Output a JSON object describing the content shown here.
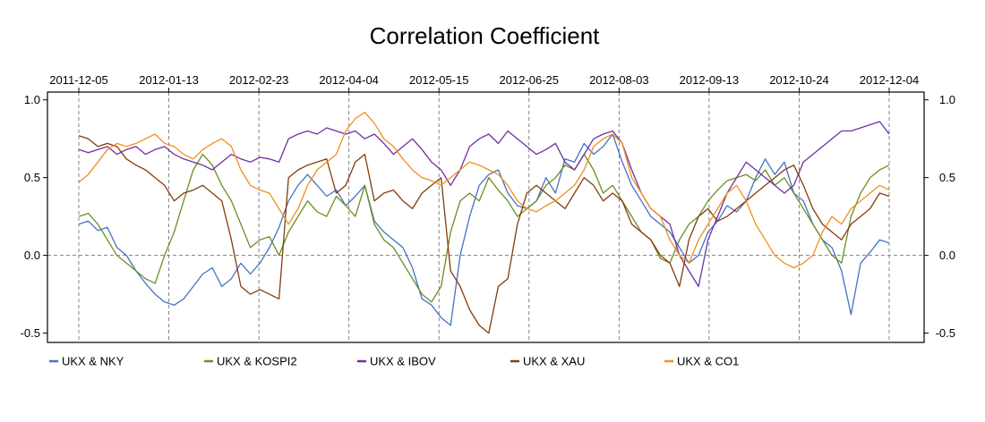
{
  "chart_data": {
    "type": "line",
    "title": "Correlation Coefficient",
    "xlabel": "",
    "ylabel": "",
    "x_ticks": [
      "2011-12-05",
      "2012-01-13",
      "2012-02-23",
      "2012-04-04",
      "2012-05-15",
      "2012-06-25",
      "2012-08-03",
      "2012-09-13",
      "2012-10-24",
      "2012-12-04"
    ],
    "y_ticks": [
      "1.0",
      "0.5",
      "0.0",
      "-0.5"
    ],
    "y_tick_values": [
      1.0,
      0.5,
      0.0,
      -0.5
    ],
    "ylim": [
      -0.56,
      1.05
    ],
    "grid": "dashed vertical lines at date ticks, dashed horizontal line at 0",
    "legend_position": "bottom",
    "series": [
      {
        "name": "UKX  &  NKY",
        "color": "#4472C4",
        "values": [
          0.2,
          0.22,
          0.16,
          0.18,
          0.05,
          0.0,
          -0.1,
          -0.18,
          -0.25,
          -0.3,
          -0.32,
          -0.28,
          -0.2,
          -0.12,
          -0.08,
          -0.2,
          -0.15,
          -0.05,
          -0.12,
          -0.05,
          0.05,
          0.18,
          0.35,
          0.45,
          0.52,
          0.45,
          0.38,
          0.42,
          0.32,
          0.38,
          0.45,
          0.22,
          0.15,
          0.1,
          0.05,
          -0.08,
          -0.28,
          -0.32,
          -0.4,
          -0.45,
          0.0,
          0.25,
          0.45,
          0.52,
          0.55,
          0.4,
          0.32,
          0.3,
          0.35,
          0.5,
          0.4,
          0.62,
          0.6,
          0.72,
          0.65,
          0.7,
          0.78,
          0.6,
          0.45,
          0.35,
          0.25,
          0.2,
          0.15,
          0.05,
          -0.05,
          0.0,
          0.15,
          0.22,
          0.32,
          0.28,
          0.35,
          0.5,
          0.62,
          0.52,
          0.6,
          0.4,
          0.35,
          0.2,
          0.1,
          0.05,
          -0.1,
          -0.38,
          -0.05,
          0.02,
          0.1,
          0.08
        ]
      },
      {
        "name": "UKX  &  KOSPI2",
        "color": "#6B8E23",
        "values": [
          0.25,
          0.27,
          0.2,
          0.1,
          0.0,
          -0.05,
          -0.1,
          -0.15,
          -0.18,
          0.0,
          0.15,
          0.35,
          0.55,
          0.65,
          0.58,
          0.45,
          0.35,
          0.2,
          0.05,
          0.1,
          0.12,
          0.0,
          0.15,
          0.25,
          0.35,
          0.28,
          0.25,
          0.38,
          0.32,
          0.25,
          0.45,
          0.2,
          0.1,
          0.05,
          -0.05,
          -0.15,
          -0.25,
          -0.3,
          -0.2,
          0.15,
          0.35,
          0.4,
          0.35,
          0.5,
          0.42,
          0.35,
          0.25,
          0.3,
          0.35,
          0.45,
          0.5,
          0.58,
          0.55,
          0.65,
          0.55,
          0.4,
          0.45,
          0.35,
          0.25,
          0.15,
          0.1,
          -0.02,
          -0.05,
          0.1,
          0.2,
          0.25,
          0.35,
          0.42,
          0.48,
          0.5,
          0.52,
          0.48,
          0.55,
          0.45,
          0.5,
          0.4,
          0.3,
          0.2,
          0.1,
          0.0,
          -0.05,
          0.25,
          0.4,
          0.5,
          0.55,
          0.58
        ]
      },
      {
        "name": "UKX  &  IBOV",
        "color": "#7030A0",
        "values": [
          0.68,
          0.66,
          0.68,
          0.7,
          0.65,
          0.68,
          0.7,
          0.65,
          0.68,
          0.7,
          0.65,
          0.62,
          0.6,
          0.58,
          0.55,
          0.6,
          0.65,
          0.62,
          0.6,
          0.63,
          0.62,
          0.6,
          0.75,
          0.78,
          0.8,
          0.78,
          0.82,
          0.8,
          0.78,
          0.8,
          0.75,
          0.78,
          0.72,
          0.65,
          0.7,
          0.75,
          0.68,
          0.6,
          0.55,
          0.45,
          0.55,
          0.7,
          0.75,
          0.78,
          0.72,
          0.8,
          0.75,
          0.7,
          0.65,
          0.68,
          0.72,
          0.6,
          0.55,
          0.65,
          0.75,
          0.78,
          0.8,
          0.72,
          0.55,
          0.4,
          0.3,
          0.25,
          0.2,
          0.0,
          -0.1,
          -0.2,
          0.1,
          0.25,
          0.4,
          0.5,
          0.6,
          0.55,
          0.5,
          0.45,
          0.4,
          0.45,
          0.6,
          0.65,
          0.7,
          0.75,
          0.8,
          0.8,
          0.82,
          0.84,
          0.86,
          0.78
        ]
      },
      {
        "name": "UKX  &  XAU",
        "color": "#843C0C",
        "values": [
          0.77,
          0.75,
          0.7,
          0.72,
          0.7,
          0.62,
          0.58,
          0.55,
          0.5,
          0.45,
          0.35,
          0.4,
          0.42,
          0.45,
          0.4,
          0.35,
          0.1,
          -0.2,
          -0.25,
          -0.22,
          -0.25,
          -0.28,
          0.5,
          0.55,
          0.58,
          0.6,
          0.62,
          0.4,
          0.45,
          0.6,
          0.65,
          0.35,
          0.4,
          0.42,
          0.35,
          0.3,
          0.4,
          0.45,
          0.5,
          -0.1,
          -0.2,
          -0.35,
          -0.45,
          -0.5,
          -0.2,
          -0.15,
          0.2,
          0.4,
          0.45,
          0.4,
          0.35,
          0.3,
          0.4,
          0.5,
          0.45,
          0.35,
          0.4,
          0.35,
          0.2,
          0.15,
          0.1,
          0.0,
          -0.05,
          -0.2,
          0.1,
          0.25,
          0.3,
          0.22,
          0.25,
          0.3,
          0.35,
          0.4,
          0.45,
          0.5,
          0.55,
          0.58,
          0.45,
          0.3,
          0.2,
          0.15,
          0.1,
          0.2,
          0.25,
          0.3,
          0.4,
          0.38
        ]
      },
      {
        "name": "UKX  &  CO1",
        "color": "#F28E1C",
        "values": [
          0.47,
          0.52,
          0.6,
          0.68,
          0.72,
          0.7,
          0.72,
          0.75,
          0.78,
          0.72,
          0.7,
          0.65,
          0.62,
          0.68,
          0.72,
          0.75,
          0.7,
          0.55,
          0.45,
          0.42,
          0.4,
          0.3,
          0.2,
          0.3,
          0.45,
          0.55,
          0.6,
          0.65,
          0.8,
          0.88,
          0.92,
          0.85,
          0.75,
          0.7,
          0.62,
          0.55,
          0.5,
          0.48,
          0.45,
          0.5,
          0.55,
          0.6,
          0.58,
          0.55,
          0.52,
          0.45,
          0.35,
          0.3,
          0.28,
          0.32,
          0.35,
          0.4,
          0.45,
          0.55,
          0.7,
          0.75,
          0.78,
          0.72,
          0.5,
          0.4,
          0.3,
          0.25,
          0.1,
          0.0,
          -0.05,
          0.1,
          0.2,
          0.3,
          0.4,
          0.45,
          0.35,
          0.2,
          0.1,
          0.0,
          -0.05,
          -0.08,
          -0.05,
          0.0,
          0.15,
          0.25,
          0.2,
          0.3,
          0.35,
          0.4,
          0.45,
          0.42
        ]
      }
    ]
  }
}
